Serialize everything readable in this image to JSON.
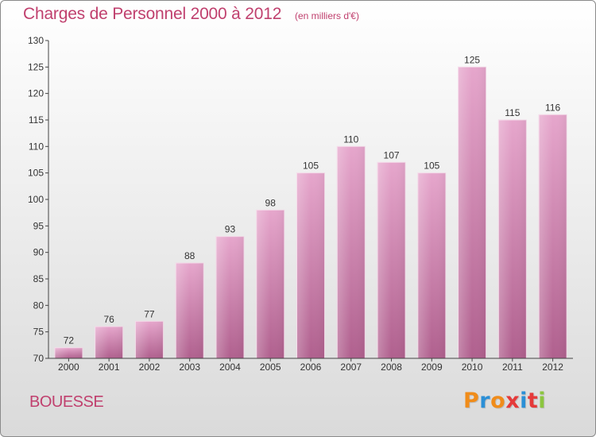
{
  "title": "Charges de Personnel 2000 à 2012",
  "subtitle": "(en milliers d'€)",
  "location": "BOUESSE",
  "logo": {
    "letters": [
      "P",
      "r",
      "o",
      "x",
      "i",
      "t",
      "i"
    ],
    "colors": [
      "#f08c1a",
      "#2b8fd6",
      "#f08c1a",
      "#e53a3a",
      "#2b8fd6",
      "#e53a3a",
      "#8cc63f"
    ]
  },
  "colors": {
    "bar_top": "#e6a6cc",
    "bar_bottom": "#b0608e",
    "text": "#c0406e"
  },
  "chart_data": {
    "type": "bar",
    "title": "Charges de Personnel 2000 à 2012",
    "subtitle": "(en milliers d'€)",
    "categories": [
      "2000",
      "2001",
      "2002",
      "2003",
      "2004",
      "2005",
      "2006",
      "2007",
      "2008",
      "2009",
      "2010",
      "2011",
      "2012"
    ],
    "values": [
      72,
      76,
      77,
      88,
      93,
      98,
      105,
      110,
      107,
      105,
      125,
      115,
      116
    ],
    "ylim": [
      70,
      130
    ],
    "yticks": [
      70,
      75,
      80,
      85,
      90,
      95,
      100,
      105,
      110,
      115,
      120,
      125,
      130
    ],
    "data_labels": true,
    "grid": false
  }
}
